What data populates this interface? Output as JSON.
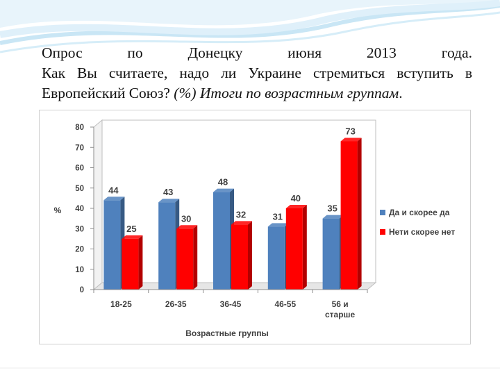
{
  "heading": {
    "line1": "Опрос по Донецку июня 2013 года.",
    "line2": "Как Вы считаете, надо ли Украине стремиться вступить в",
    "line3_normal": "Европейский Союз? ",
    "line3_italic": "(%) Итоги по возрастным группам",
    "line3_end": "."
  },
  "chart_data": {
    "type": "bar",
    "categories": [
      "18-25",
      "26-35",
      "36-45",
      "46-55",
      "56 и\nстарше"
    ],
    "series": [
      {
        "name": "Да и скорее да",
        "values": [
          44,
          43,
          48,
          31,
          35
        ],
        "color": "#4f81bd"
      },
      {
        "name": "Нети скорее нет",
        "values": [
          25,
          30,
          32,
          40,
          73
        ],
        "color": "#ff0000"
      }
    ],
    "xlabel": "Возрастные группы",
    "ylabel": "%",
    "ylim": [
      0,
      80
    ],
    "yticks": [
      0,
      10,
      20,
      30,
      40,
      50,
      60,
      70,
      80
    ],
    "grid": false,
    "legend": "right",
    "data_labels": true
  }
}
